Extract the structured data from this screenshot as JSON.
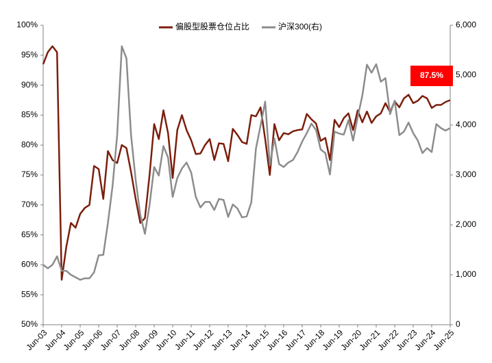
{
  "chart_data": {
    "type": "line",
    "categories": [
      "Jun-03",
      null,
      null,
      null,
      "Jun-04",
      null,
      null,
      null,
      "Jun-05",
      null,
      null,
      null,
      "Jun-06",
      null,
      null,
      null,
      "Jun-07",
      null,
      null,
      null,
      "Jun-08",
      null,
      null,
      null,
      "Jun-09",
      null,
      null,
      null,
      "Jun-10",
      null,
      null,
      null,
      "Jun-11",
      null,
      null,
      null,
      "Jun-12",
      null,
      null,
      null,
      "Jun-13",
      null,
      null,
      null,
      "Jun-14",
      null,
      null,
      null,
      "Jun-15",
      null,
      null,
      null,
      "Jun-16",
      null,
      null,
      null,
      "Jun-17",
      null,
      null,
      null,
      "Jun-18",
      null,
      null,
      null,
      "Jun-19",
      null,
      null,
      null,
      "Jun-20",
      null,
      null,
      null,
      "Jun-21",
      null,
      null,
      null,
      "Jun-22",
      null,
      null,
      null,
      "Jun-23",
      null,
      null,
      null,
      "Jun-24",
      null,
      null,
      null,
      "Jun-25"
    ],
    "series": [
      {
        "name": "偏股型股票仓位占比",
        "color": "#7b1e0c",
        "axis": "y",
        "values": [
          93.5,
          95.5,
          96.5,
          95.5,
          57.5,
          63,
          67,
          66.2,
          68.5,
          69.5,
          70,
          76.5,
          76,
          71,
          79,
          77.5,
          77,
          80,
          79.5,
          75.5,
          71,
          67,
          67.8,
          75,
          83.5,
          81,
          85.8,
          82,
          74.5,
          82.5,
          85,
          82.5,
          80.8,
          78.5,
          78.6,
          80,
          81,
          77.5,
          80.3,
          80.2,
          77.3,
          82.7,
          81.7,
          80.5,
          80.2,
          85,
          84.8,
          86.3,
          81,
          75,
          83.5,
          80.8,
          82,
          81.8,
          82.3,
          82.5,
          82.6,
          85.2,
          84.3,
          83.6,
          80.7,
          81.2,
          77.5,
          84.2,
          83,
          84.5,
          85.3,
          82.5,
          85.8,
          83.8,
          85.6,
          83.7,
          84.8,
          85.3,
          87,
          85.5,
          87.3,
          86.3,
          87.8,
          88.4,
          87,
          87.4,
          88.2,
          87.8,
          86.2,
          86.7,
          86.7,
          87.2,
          87.5
        ],
        "value_labels": [
          null,
          null,
          null,
          null,
          null,
          null,
          null,
          null,
          null,
          null,
          null,
          null,
          null,
          null,
          null,
          null,
          null,
          null,
          null,
          null,
          null,
          null,
          null,
          null,
          null,
          null,
          null,
          null,
          null,
          null,
          null,
          null,
          null,
          null,
          null,
          null,
          null,
          null,
          null,
          null,
          null,
          null,
          null,
          null,
          null,
          null,
          null,
          null,
          null,
          null,
          null,
          null,
          null,
          null,
          null,
          null,
          null,
          null,
          null,
          null,
          null,
          null,
          null,
          null,
          null,
          null,
          null,
          null,
          null,
          null,
          null,
          null,
          null,
          null,
          null,
          null,
          null,
          null,
          null,
          null,
          null,
          null,
          null,
          null,
          null,
          null,
          null,
          null,
          "87.5%"
        ]
      },
      {
        "name": "沪深300(右)",
        "color": "#8c8c8c",
        "axis": "y2",
        "values": [
          1200,
          1130,
          1200,
          1370,
          1080,
          1080,
          1000,
          950,
          900,
          930,
          930,
          1050,
          1390,
          1400,
          2040,
          2780,
          3800,
          5580,
          5340,
          3800,
          2900,
          2200,
          1820,
          2400,
          3160,
          2990,
          3580,
          3350,
          2560,
          2940,
          3130,
          3250,
          3050,
          2560,
          2350,
          2460,
          2460,
          2300,
          2520,
          2500,
          2160,
          2410,
          2330,
          2150,
          2170,
          2450,
          3530,
          3990,
          4470,
          3200,
          3730,
          3220,
          3160,
          3250,
          3300,
          3460,
          3670,
          3840,
          4030,
          3900,
          3510,
          3440,
          3010,
          3870,
          3830,
          3810,
          4100,
          3690,
          4160,
          4590,
          5210,
          5050,
          5220,
          4870,
          4940,
          4220,
          4490,
          3800,
          3870,
          4050,
          3840,
          3690,
          3440,
          3540,
          3460,
          4020,
          3940,
          3890,
          3940
        ]
      }
    ],
    "ylim": [
      50,
      100
    ],
    "yticks": [
      {
        "value": 50,
        "label": "50%"
      },
      {
        "value": 55,
        "label": "55%"
      },
      {
        "value": 60,
        "label": "60%"
      },
      {
        "value": 65,
        "label": "65%"
      },
      {
        "value": 70,
        "label": "70%"
      },
      {
        "value": 75,
        "label": "75%"
      },
      {
        "value": 80,
        "label": "80%"
      },
      {
        "value": 85,
        "label": "85%"
      },
      {
        "value": 90,
        "label": "90%"
      },
      {
        "value": 95,
        "label": "95%"
      },
      {
        "value": 100,
        "label": "100%"
      }
    ],
    "y2lim": [
      0,
      6000
    ],
    "y2ticks": [
      0,
      {
        "value": 1000,
        "label": "1,000"
      },
      {
        "value": 2000,
        "label": "2,000"
      },
      {
        "value": 3000,
        "label": "3,000"
      },
      {
        "value": 4000,
        "label": "4,000"
      },
      {
        "value": 5000,
        "label": "5,000"
      },
      {
        "value": 6000,
        "label": "6,000"
      }
    ],
    "grid": false,
    "legend": "top"
  }
}
